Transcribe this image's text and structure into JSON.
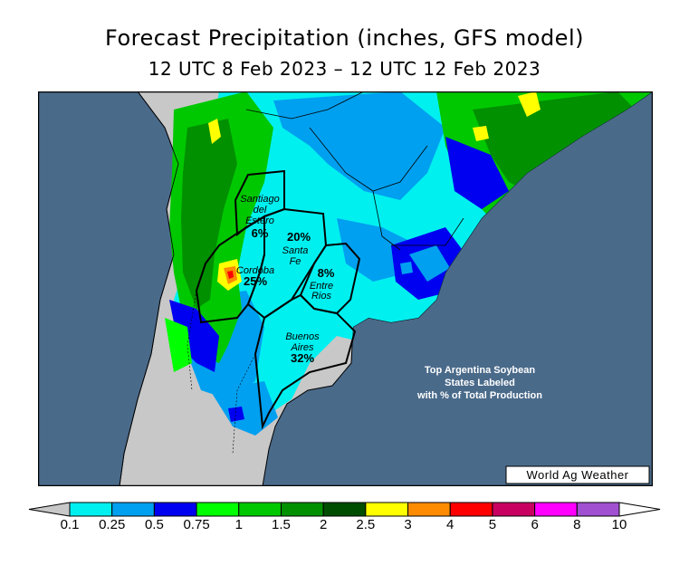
{
  "header": {
    "title": "Forecast Precipitation (inches, GFS model)",
    "subtitle": "12 UTC 8 Feb 2023 – 12 UTC 12 Feb 2023"
  },
  "map": {
    "states": [
      {
        "name_lines": [
          "Santiago",
          "del",
          "Estero"
        ],
        "pct": "6%"
      },
      {
        "name_lines": [
          "Santa",
          "Fe"
        ],
        "pct": "20%"
      },
      {
        "name_lines": [
          "Cordoba"
        ],
        "pct": "25%"
      },
      {
        "name_lines": [
          "Entre",
          "Rios"
        ],
        "pct": "8%"
      },
      {
        "name_lines": [
          "Buenos",
          "Aires"
        ],
        "pct": "32%"
      }
    ],
    "note_lines": [
      "Top Argentina Soybean",
      "States Labeled",
      "with % of Total Production"
    ],
    "credit": "World Ag Weather",
    "colors": {
      "ocean": "#4a6a8a",
      "land": "#c8c8c8"
    }
  },
  "legend": {
    "ticks": [
      "0.1",
      "0.25",
      "0.5",
      "0.75",
      "1",
      "1.5",
      "2",
      "2.5",
      "3",
      "4",
      "5",
      "6",
      "8",
      "10"
    ],
    "colors": [
      "#00f0f0",
      "#00a0f0",
      "#0000f0",
      "#00ff00",
      "#00c800",
      "#009000",
      "#004d00",
      "#ffff00",
      "#ff8c00",
      "#ff0000",
      "#c80060",
      "#ff00ff",
      "#a050d0"
    ]
  }
}
